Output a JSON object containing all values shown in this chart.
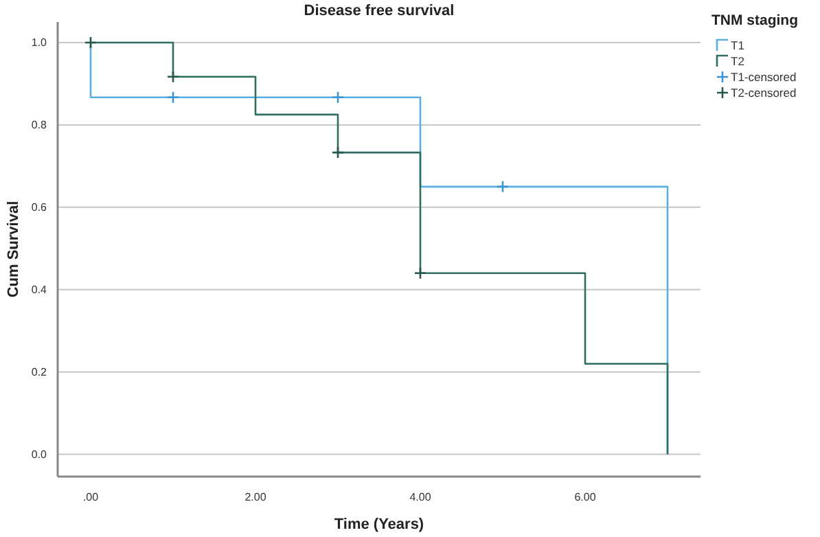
{
  "chart_data": {
    "type": "step",
    "title": "Disease free survival",
    "xlabel": "Time (Years)",
    "ylabel": "Cum Survival",
    "legend_title": "TNM staging",
    "xlim": [
      -0.4,
      7.4
    ],
    "xticks": [
      {
        "value": 0,
        "label": ".00"
      },
      {
        "value": 2,
        "label": "2.00"
      },
      {
        "value": 4,
        "label": "4.00"
      },
      {
        "value": 6,
        "label": "6.00"
      }
    ],
    "ylim": [
      -0.054,
      1.05
    ],
    "yticks": [
      {
        "value": 0,
        "label": "0.0"
      },
      {
        "value": 0.2,
        "label": "0.2"
      },
      {
        "value": 0.4,
        "label": "0.4"
      },
      {
        "value": 0.6,
        "label": "0.6"
      },
      {
        "value": 0.8,
        "label": "0.8"
      },
      {
        "value": 1,
        "label": "1.0"
      }
    ],
    "grid": "y",
    "legend": "top right",
    "line_style": "solid",
    "series": [
      {
        "name": "T1",
        "color": "#5aaee0",
        "x": [
          0,
          0,
          4,
          7,
          7
        ],
        "values": [
          1,
          0.867,
          0.65,
          0.65,
          0
        ]
      },
      {
        "name": "T2",
        "color": "#2f6f62",
        "x": [
          0,
          1,
          2,
          3,
          4,
          6,
          7,
          7
        ],
        "values": [
          1,
          0.917,
          0.825,
          0.733,
          0.44,
          0.22,
          0.22,
          0
        ]
      },
      {
        "name": "T1-censored",
        "type": "scatter",
        "marker": "cross",
        "color": "#3a95d0",
        "x": [
          1,
          3,
          5
        ],
        "values": [
          0.867,
          0.867,
          0.65
        ]
      },
      {
        "name": "T2-censored",
        "type": "scatter",
        "marker": "cross",
        "color": "#24584d",
        "x": [
          0,
          1,
          3,
          4
        ],
        "values": [
          1,
          0.917,
          0.733,
          0.44
        ]
      }
    ]
  }
}
